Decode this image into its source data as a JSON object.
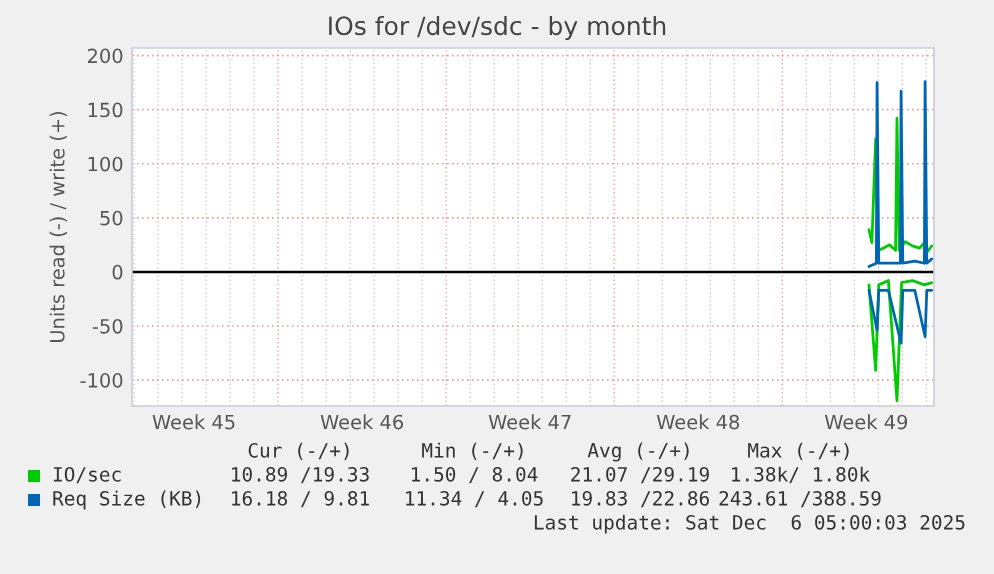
{
  "chart_data": {
    "type": "line",
    "title": "IOs for /dev/sdc - by month",
    "ylabel": "Units read (-) / write (+)",
    "xlim": [
      "2025-11-03T22:00",
      "2025-12-07T07:36"
    ],
    "ylim": [
      -124,
      207
    ],
    "xticks": [
      {
        "value": "2025-11-06T12:00",
        "label": "Week 45"
      },
      {
        "value": "2025-11-13T12:00",
        "label": "Week 46"
      },
      {
        "value": "2025-11-20T12:00",
        "label": "Week 47"
      },
      {
        "value": "2025-11-27T12:00",
        "label": "Week 48"
      },
      {
        "value": "2025-12-04T12:00",
        "label": "Week 49"
      }
    ],
    "yticks": [
      -100,
      -50,
      0,
      50,
      100,
      150,
      200
    ],
    "grid": true,
    "legend": "bottom",
    "ref_lines": [
      {
        "axis": "y",
        "value": 0,
        "color": "#000000"
      }
    ],
    "series": [
      {
        "name": "IO/sec",
        "color": "#00cc00",
        "x": [
          "2025-12-04T14:36",
          "2025-12-04T17:30",
          "2025-12-04T21:18",
          "2025-12-04T23:54",
          "2025-12-05T05:12",
          "2025-12-05T11:12",
          "2025-12-05T17:12",
          "2025-12-05T18:36",
          "2025-12-05T20:48",
          "2025-12-06T02:48",
          "2025-12-06T10:00",
          "2025-12-06T17:12",
          "2025-12-06T22:00",
          "2025-12-07T00:24",
          "2025-12-07T05:24"
        ],
        "values": [
          39,
          27,
          123,
          20,
          22,
          25,
          20,
          142,
          20,
          28,
          24,
          22,
          27,
          18,
          24
        ]
      },
      {
        "name": "Req Size (KB)",
        "color": "#0066b3",
        "x": [
          "2025-12-04T14:36",
          "2025-12-04T22:00",
          "2025-12-04T22:42",
          "2025-12-05T00:24",
          "2025-12-05T10:00",
          "2025-12-05T22:00",
          "2025-12-05T22:42",
          "2025-12-06T00:24",
          "2025-12-06T12:24",
          "2025-12-06T22:00",
          "2025-12-06T22:42",
          "2025-12-07T00:24",
          "2025-12-07T05:24"
        ],
        "values": [
          5,
          8,
          175,
          8,
          8,
          8,
          167,
          8,
          10,
          8,
          176,
          8,
          12
        ]
      },
      {
        "color": "#00cc00",
        "x": [
          "2025-12-04T14:36",
          "2025-12-04T21:18",
          "2025-12-05T00:24",
          "2025-12-05T10:00",
          "2025-12-05T18:36",
          "2025-12-05T20:48",
          "2025-12-05T23:12",
          "2025-12-06T10:00",
          "2025-12-06T22:00",
          "2025-12-07T05:24"
        ],
        "values": [
          -12,
          -91,
          -12,
          -8,
          -119,
          -67,
          -10,
          -8,
          -12,
          -10
        ]
      },
      {
        "color": "#0066b3",
        "x": [
          "2025-12-04T14:36",
          "2025-12-04T22:42",
          "2025-12-05T00:24",
          "2025-12-05T10:00",
          "2025-12-05T22:42",
          "2025-12-06T00:24",
          "2025-12-06T12:24",
          "2025-12-06T22:42",
          "2025-12-07T00:24",
          "2025-12-07T05:24"
        ],
        "values": [
          -17,
          -54,
          -17,
          -17,
          -66,
          -17,
          -17,
          -60,
          -17,
          -17
        ]
      }
    ],
    "annotations": [
      "Cur (-/+)",
      "Min (-/+)",
      "Avg (-/+)",
      "Max (-/+)",
      "10.89 /19.33",
      "1.50 / 8.04",
      "21.07 /29.19",
      "1.38k/ 1.80k",
      "16.18 / 9.81",
      "11.34 / 4.05",
      "19.83 /22.86",
      "243.61 /388.59",
      "Last update: Sat Dec  6 05:00:03 2025"
    ]
  }
}
